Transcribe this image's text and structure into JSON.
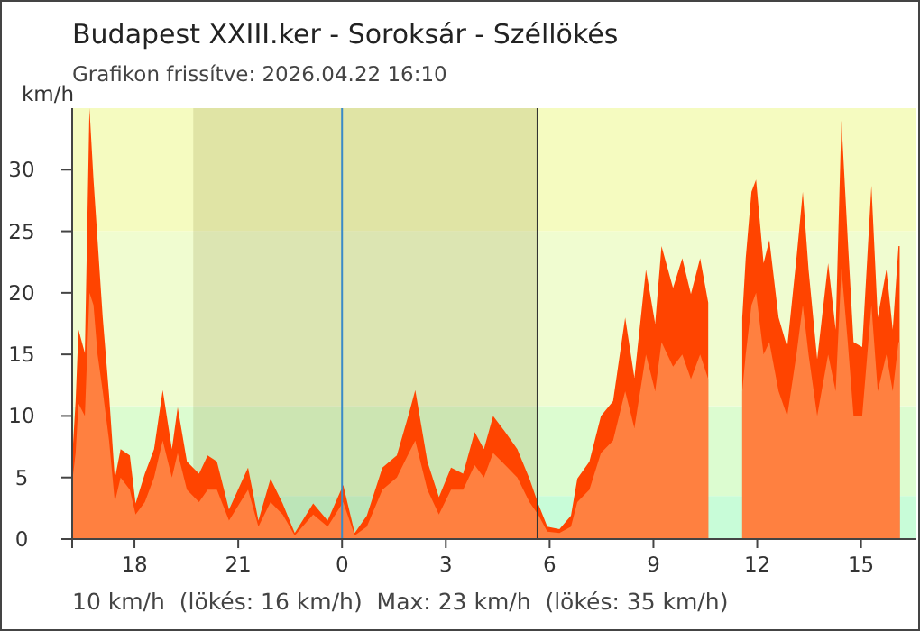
{
  "chart_data": {
    "type": "area",
    "title": "Budapest XXIII.ker - Soroksár - Széllökés",
    "subtitle": "Grafikon frissítve: 2026.04.22 16:10",
    "ylabel": "km/h",
    "annotations": [
      "10 km/h  (lökés: 16 km/h)  Max: 23 km/h  (lökés: 35 km/h)"
    ],
    "x": [
      "2026-04-21T16:13",
      "2026-04-21T16:18",
      "2026-04-21T16:23",
      "2026-04-21T16:34",
      "2026-04-21T16:42",
      "2026-04-21T16:49",
      "2026-04-21T16:56",
      "2026-04-21T17:05",
      "2026-04-21T17:16",
      "2026-04-21T17:26",
      "2026-04-21T17:36",
      "2026-04-21T17:52",
      "2026-04-21T18:02",
      "2026-04-21T18:18",
      "2026-04-21T18:34",
      "2026-04-21T18:49",
      "2026-04-21T19:05",
      "2026-04-21T19:15",
      "2026-04-21T19:31",
      "2026-04-21T19:52",
      "2026-04-21T20:07",
      "2026-04-21T20:23",
      "2026-04-21T20:44",
      "2026-04-21T21:17",
      "2026-04-21T21:35",
      "2026-04-21T21:56",
      "2026-04-21T22:17",
      "2026-04-21T22:38",
      "2026-04-21T23:10",
      "2026-04-21T23:35",
      "2026-04-22T00:02",
      "2026-04-22T00:22",
      "2026-04-22T00:43",
      "2026-04-22T01:10",
      "2026-04-22T01:35",
      "2026-04-22T01:56",
      "2026-04-22T02:07",
      "2026-04-22T02:28",
      "2026-04-22T02:48",
      "2026-04-22T03:09",
      "2026-04-22T03:30",
      "2026-04-22T03:50",
      "2026-04-22T04:06",
      "2026-04-22T04:22",
      "2026-04-22T04:43",
      "2026-04-22T05:04",
      "2026-04-22T05:25",
      "2026-04-22T05:40",
      "2026-04-22T05:56",
      "2026-04-22T06:17",
      "2026-04-22T06:37",
      "2026-04-22T06:48",
      "2026-04-22T07:09",
      "2026-04-22T07:29",
      "2026-04-22T07:50",
      "2026-04-22T08:11",
      "2026-04-22T08:27",
      "2026-04-22T08:47",
      "2026-04-22T09:03",
      "2026-04-22T09:14",
      "2026-04-22T09:34",
      "2026-04-22T09:50",
      "2026-04-22T10:05",
      "2026-04-22T10:21",
      "2026-04-22T10:35",
      "2026-04-22T11:00",
      "2026-04-22T11:34",
      "2026-04-22T11:40",
      "2026-04-22T11:50",
      "2026-04-22T11:58",
      "2026-04-22T12:11",
      "2026-04-22T12:21",
      "2026-04-22T12:37",
      "2026-04-22T12:52",
      "2026-04-22T13:08",
      "2026-04-22T13:19",
      "2026-04-22T13:29",
      "2026-04-22T13:44",
      "2026-04-22T14:03",
      "2026-04-22T14:16",
      "2026-04-22T14:26",
      "2026-04-22T14:37",
      "2026-04-22T14:47",
      "2026-04-22T15:02",
      "2026-04-22T15:18",
      "2026-04-22T15:29",
      "2026-04-22T15:44",
      "2026-04-22T15:55",
      "2026-04-22T16:05",
      "2026-04-22T16:07"
    ],
    "series": [
      {
        "color": "#ff4400",
        "values": [
          7.3,
          11.2,
          17,
          15.1,
          35,
          29.2,
          24.3,
          18,
          11.7,
          4.9,
          7.3,
          6.8,
          2.9,
          5.3,
          7.3,
          12.1,
          7.3,
          10.7,
          6.3,
          5.3,
          6.8,
          6.3,
          2.4,
          5.8,
          1.5,
          4.9,
          2.9,
          0.5,
          2.9,
          1.5,
          4.4,
          0.5,
          1.9,
          5.8,
          6.8,
          10.2,
          12.1,
          6.3,
          3.4,
          5.8,
          5.3,
          8.7,
          7.3,
          10,
          8.7,
          7.3,
          4.9,
          2.9,
          1,
          0.8,
          1.9,
          4.9,
          6.3,
          10,
          11.2,
          18,
          13.1,
          21.9,
          17.5,
          23.8,
          20.4,
          22.8,
          19.9,
          22.8,
          19.2,
          null,
          18,
          22.8,
          28.2,
          29.2,
          22.4,
          24.3,
          18,
          15.6,
          22.8,
          28.2,
          21.9,
          14.6,
          22.4,
          17,
          34,
          24.3,
          16,
          15.6,
          28.7,
          18,
          21.9,
          17,
          23.8,
          23.8
        ]
      },
      {
        "color": "#ff8040",
        "values": [
          5,
          7,
          11,
          10,
          20,
          19,
          15,
          12,
          8,
          3,
          5,
          4,
          2,
          3,
          5,
          8,
          5,
          7,
          4,
          3,
          4,
          4,
          1.5,
          4,
          1,
          3,
          2,
          0.3,
          2,
          1,
          3,
          0.3,
          1,
          4,
          5,
          7,
          8,
          4,
          2,
          4,
          4,
          6,
          5,
          7,
          6,
          5,
          3,
          2,
          0.6,
          0.5,
          1,
          3,
          4,
          7,
          8,
          12,
          9,
          15,
          12,
          16,
          14,
          15,
          13,
          15,
          13,
          null,
          12,
          15,
          19,
          20,
          15,
          16,
          12,
          10,
          15,
          19,
          15,
          10,
          15,
          12,
          22,
          16,
          10,
          10,
          19,
          12,
          15,
          12,
          16,
          16
        ]
      }
    ],
    "xlim": [
      "2026-04-21T16:12",
      "2026-04-22T16:36"
    ],
    "xticks": [
      {
        "value": "2026-04-21T16:12",
        "label": null
      },
      {
        "value": "2026-04-21T18:00",
        "label": "18"
      },
      {
        "value": "2026-04-21T21:00",
        "label": "21"
      },
      {
        "value": "2026-04-22T00:00",
        "label": "0"
      },
      {
        "value": "2026-04-22T03:00",
        "label": "3"
      },
      {
        "value": "2026-04-22T06:00",
        "label": "6"
      },
      {
        "value": "2026-04-22T09:00",
        "label": "9"
      },
      {
        "value": "2026-04-22T12:00",
        "label": "12"
      },
      {
        "value": "2026-04-22T15:00",
        "label": "15"
      }
    ],
    "ylim": [
      0,
      35
    ],
    "yticks": [
      0,
      5,
      10,
      15,
      20,
      25,
      30
    ],
    "bands": [
      {
        "axis": "y",
        "from": 0,
        "to": 3.5,
        "color": "#c8fcd8"
      },
      {
        "axis": "y",
        "from": 3.5,
        "to": 10.8,
        "color": "#dcfcd0"
      },
      {
        "axis": "y",
        "from": 10.8,
        "to": 25,
        "color": "#f0fcd0"
      },
      {
        "axis": "y",
        "from": 25,
        "to": 35,
        "color": "#f5fbc0"
      },
      {
        "axis": "x",
        "from": "2026-04-21T19:42",
        "to": "2026-04-22T05:39",
        "color": "#8c8c3c"
      }
    ],
    "ref_lines": [
      {
        "axis": "x",
        "value": "2026-04-22T00:00",
        "color": "#3a8ac8"
      },
      {
        "axis": "x",
        "value": "2026-04-22T05:39",
        "color": "#333333"
      }
    ],
    "grid": false
  }
}
